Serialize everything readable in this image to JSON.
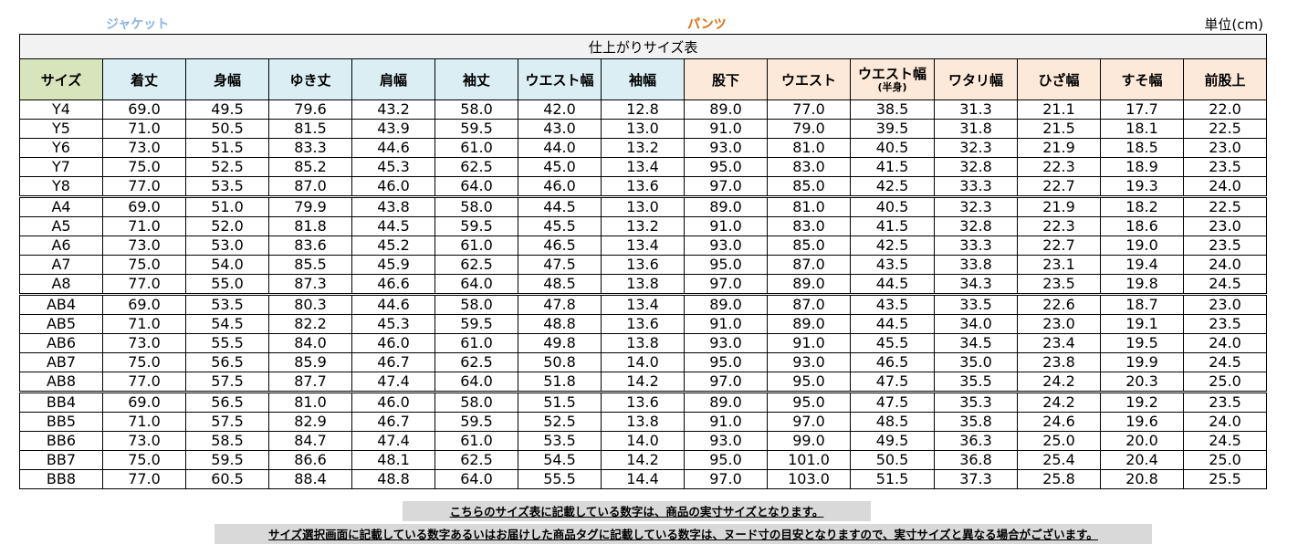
{
  "labels": {
    "jacket": "ジャケット",
    "pants": "パンツ",
    "unit": "単位(cm)"
  },
  "table": {
    "title": "仕上がりサイズ表",
    "headers": {
      "size": "サイズ",
      "jacket": [
        "着丈",
        "身幅",
        "ゆき丈",
        "肩幅",
        "袖丈",
        "ウエスト幅",
        "袖幅"
      ],
      "pants": [
        "股下",
        "ウエスト"
      ],
      "waist_half": "ウエスト幅",
      "waist_half_sub": "(半身)",
      "pants2": [
        "ワタリ幅",
        "ひざ幅",
        "すそ幅",
        "前股上"
      ]
    },
    "rows": [
      [
        "Y4",
        "69.0",
        "49.5",
        "79.6",
        "43.2",
        "58.0",
        "42.0",
        "12.8",
        "89.0",
        "77.0",
        "38.5",
        "31.3",
        "21.1",
        "17.7",
        "22.0"
      ],
      [
        "Y5",
        "71.0",
        "50.5",
        "81.5",
        "43.9",
        "59.5",
        "43.0",
        "13.0",
        "91.0",
        "79.0",
        "39.5",
        "31.8",
        "21.5",
        "18.1",
        "22.5"
      ],
      [
        "Y6",
        "73.0",
        "51.5",
        "83.3",
        "44.6",
        "61.0",
        "44.0",
        "13.2",
        "93.0",
        "81.0",
        "40.5",
        "32.3",
        "21.9",
        "18.5",
        "23.0"
      ],
      [
        "Y7",
        "75.0",
        "52.5",
        "85.2",
        "45.3",
        "62.5",
        "45.0",
        "13.4",
        "95.0",
        "83.0",
        "41.5",
        "32.8",
        "22.3",
        "18.9",
        "23.5"
      ],
      [
        "Y8",
        "77.0",
        "53.5",
        "87.0",
        "46.0",
        "64.0",
        "46.0",
        "13.6",
        "97.0",
        "85.0",
        "42.5",
        "33.3",
        "22.7",
        "19.3",
        "24.0"
      ],
      [
        "A4",
        "69.0",
        "51.0",
        "79.9",
        "43.8",
        "58.0",
        "44.5",
        "13.0",
        "89.0",
        "81.0",
        "40.5",
        "32.3",
        "21.9",
        "18.2",
        "22.5"
      ],
      [
        "A5",
        "71.0",
        "52.0",
        "81.8",
        "44.5",
        "59.5",
        "45.5",
        "13.2",
        "91.0",
        "83.0",
        "41.5",
        "32.8",
        "22.3",
        "18.6",
        "23.0"
      ],
      [
        "A6",
        "73.0",
        "53.0",
        "83.6",
        "45.2",
        "61.0",
        "46.5",
        "13.4",
        "93.0",
        "85.0",
        "42.5",
        "33.3",
        "22.7",
        "19.0",
        "23.5"
      ],
      [
        "A7",
        "75.0",
        "54.0",
        "85.5",
        "45.9",
        "62.5",
        "47.5",
        "13.6",
        "95.0",
        "87.0",
        "43.5",
        "33.8",
        "23.1",
        "19.4",
        "24.0"
      ],
      [
        "A8",
        "77.0",
        "55.0",
        "87.3",
        "46.6",
        "64.0",
        "48.5",
        "13.8",
        "97.0",
        "89.0",
        "44.5",
        "34.3",
        "23.5",
        "19.8",
        "24.5"
      ],
      [
        "AB4",
        "69.0",
        "53.5",
        "80.3",
        "44.6",
        "58.0",
        "47.8",
        "13.4",
        "89.0",
        "87.0",
        "43.5",
        "33.5",
        "22.6",
        "18.7",
        "23.0"
      ],
      [
        "AB5",
        "71.0",
        "54.5",
        "82.2",
        "45.3",
        "59.5",
        "48.8",
        "13.6",
        "91.0",
        "89.0",
        "44.5",
        "34.0",
        "23.0",
        "19.1",
        "23.5"
      ],
      [
        "AB6",
        "73.0",
        "55.5",
        "84.0",
        "46.0",
        "61.0",
        "49.8",
        "13.8",
        "93.0",
        "91.0",
        "45.5",
        "34.5",
        "23.4",
        "19.5",
        "24.0"
      ],
      [
        "AB7",
        "75.0",
        "56.5",
        "85.9",
        "46.7",
        "62.5",
        "50.8",
        "14.0",
        "95.0",
        "93.0",
        "46.5",
        "35.0",
        "23.8",
        "19.9",
        "24.5"
      ],
      [
        "AB8",
        "77.0",
        "57.5",
        "87.7",
        "47.4",
        "64.0",
        "51.8",
        "14.2",
        "97.0",
        "95.0",
        "47.5",
        "35.5",
        "24.2",
        "20.3",
        "25.0"
      ],
      [
        "BB4",
        "69.0",
        "56.5",
        "81.0",
        "46.0",
        "58.0",
        "51.5",
        "13.6",
        "89.0",
        "95.0",
        "47.5",
        "35.3",
        "24.2",
        "19.2",
        "23.5"
      ],
      [
        "BB5",
        "71.0",
        "57.5",
        "82.9",
        "46.7",
        "59.5",
        "52.5",
        "13.8",
        "91.0",
        "97.0",
        "48.5",
        "35.8",
        "24.6",
        "19.6",
        "24.0"
      ],
      [
        "BB6",
        "73.0",
        "58.5",
        "84.7",
        "47.4",
        "61.0",
        "53.5",
        "14.0",
        "93.0",
        "99.0",
        "49.5",
        "36.3",
        "25.0",
        "20.0",
        "24.5"
      ],
      [
        "BB7",
        "75.0",
        "59.5",
        "86.6",
        "48.1",
        "62.5",
        "54.5",
        "14.2",
        "95.0",
        "101.0",
        "50.5",
        "36.8",
        "25.4",
        "20.4",
        "25.0"
      ],
      [
        "BB8",
        "77.0",
        "60.5",
        "88.4",
        "48.8",
        "64.0",
        "55.5",
        "14.4",
        "97.0",
        "103.0",
        "51.5",
        "37.3",
        "25.8",
        "20.8",
        "25.5"
      ]
    ]
  },
  "notes": {
    "note1": "こちらのサイズ表に記載している数字は、商品の実寸サイズとなります。",
    "note2": "サイズ選択画面に記載している数字あるいはお届けした商品タグに記載している数字は、ヌード寸の目安となりますので、実寸サイズと異なる場合がございます。"
  }
}
